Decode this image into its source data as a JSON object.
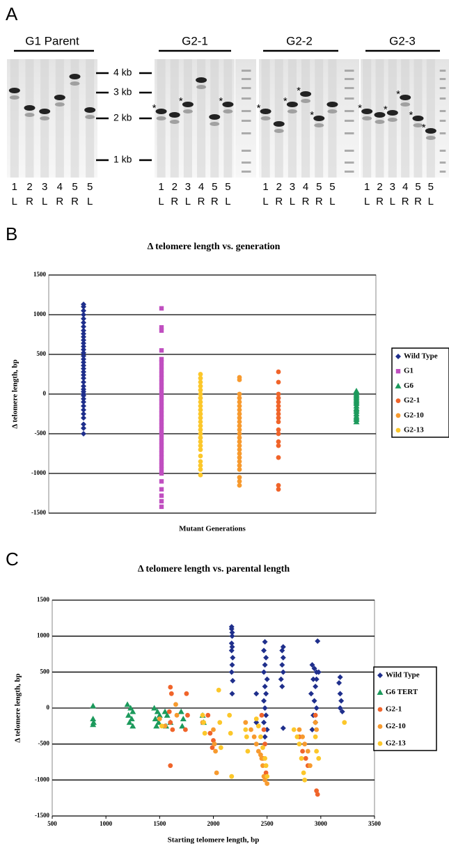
{
  "panel_a": {
    "letter": "A",
    "marker_symbol": "*",
    "size_markers": [
      "4 kb",
      "3 kb",
      "2 kb",
      "1 kb"
    ],
    "groups": [
      {
        "label": "G1 Parent",
        "lanes": [
          [
            "1",
            "L"
          ],
          [
            "2",
            "R"
          ],
          [
            "3",
            "L"
          ],
          [
            "4",
            "R"
          ],
          [
            "5",
            "R"
          ],
          [
            "5",
            "L"
          ]
        ]
      },
      {
        "label": "G2-1",
        "lanes": [
          [
            "1",
            "L"
          ],
          [
            "2",
            "R"
          ],
          [
            "3",
            "L"
          ],
          [
            "4",
            "R"
          ],
          [
            "5",
            "R"
          ],
          [
            "5",
            "L"
          ]
        ]
      },
      {
        "label": "G2-2",
        "lanes": [
          [
            "1",
            "L"
          ],
          [
            "2",
            "R"
          ],
          [
            "3",
            "L"
          ],
          [
            "4",
            "R"
          ],
          [
            "5",
            "R"
          ],
          [
            "5",
            "L"
          ]
        ]
      },
      {
        "label": "G2-3",
        "lanes": [
          [
            "1",
            "L"
          ],
          [
            "2",
            "R"
          ],
          [
            "3",
            "L"
          ],
          [
            "4",
            "R"
          ],
          [
            "5",
            "R"
          ],
          [
            "5",
            "L"
          ]
        ]
      }
    ]
  },
  "chart_data": [
    {
      "type": "strip",
      "letter": "B",
      "title": "Δ telomere length vs. generation",
      "y_label": "Δ telomere length, bp",
      "x_label": "Mutant Generations",
      "categories": [
        null,
        null,
        null,
        null,
        null,
        null,
        null,
        null
      ],
      "ylim": [
        -1500,
        1500
      ],
      "yticks": [
        -1500,
        -1000,
        -500,
        0,
        500,
        1000,
        1500
      ],
      "grid": true,
      "legend": "right",
      "series": [
        {
          "name": "Wild Type",
          "color": "#1f2f8c",
          "marker": "diamond",
          "category": 0,
          "values": [
            -500,
            -430,
            -380,
            -300,
            -250,
            -200,
            -150,
            -100,
            -60,
            -20,
            0,
            30,
            60,
            100,
            150,
            200,
            240,
            280,
            320,
            360,
            400,
            440,
            480,
            520,
            560,
            600,
            640,
            680,
            720,
            760,
            800,
            850,
            900,
            950,
            1000,
            1050,
            1100,
            1130
          ]
        },
        {
          "name": "G1",
          "color": "#c04fc0",
          "marker": "square",
          "category": 2,
          "values": [
            -1420,
            -1350,
            -1280,
            -1200,
            -1100,
            -1000,
            -950,
            -900,
            -850,
            -800,
            -750,
            -700,
            -650,
            -600,
            -550,
            -500,
            -450,
            -400,
            -350,
            -300,
            -250,
            -200,
            -150,
            -100,
            -50,
            0,
            50,
            100,
            150,
            200,
            250,
            300,
            350,
            400,
            440,
            550,
            800,
            840,
            1080
          ]
        },
        {
          "name": "G6",
          "color": "#1c9a5c",
          "marker": "triangle",
          "category": 7,
          "values": [
            -350,
            -320,
            -300,
            -280,
            -250,
            -220,
            -200,
            -180,
            -150,
            -120,
            -100,
            -80,
            -60,
            -40,
            -20,
            0,
            20,
            40
          ]
        },
        {
          "name": "G2-1",
          "color": "#f0642a",
          "marker": "circle",
          "category": 5,
          "values": [
            -1200,
            -1150,
            -800,
            -650,
            -600,
            -500,
            -450,
            -350,
            -300,
            -250,
            -200,
            -150,
            -100,
            -50,
            0,
            150,
            280
          ]
        },
        {
          "name": "G2-10",
          "color": "#f79a2e",
          "marker": "circle",
          "category": 4,
          "values": [
            -1150,
            -1100,
            -1050,
            -950,
            -900,
            -850,
            -800,
            -750,
            -700,
            -650,
            -600,
            -550,
            -500,
            -450,
            -400,
            -350,
            -300,
            -250,
            -200,
            -150,
            -100,
            -50,
            0,
            180,
            210
          ]
        },
        {
          "name": "G2-13",
          "color": "#fcc72a",
          "marker": "circle",
          "category": 3,
          "values": [
            -1020,
            -950,
            -900,
            -850,
            -780,
            -700,
            -650,
            -600,
            -550,
            -500,
            -450,
            -400,
            -350,
            -300,
            -250,
            -200,
            -150,
            -100,
            -50,
            0,
            50,
            100,
            150,
            200,
            250
          ]
        }
      ]
    },
    {
      "type": "scatter",
      "letter": "C",
      "title": "Δ telomere length vs. parental length",
      "y_label": "Δ telomere length, bp",
      "x_label": "Starting telomere length, bp",
      "xlim": [
        500,
        3500
      ],
      "xticks": [
        500,
        1000,
        1500,
        2000,
        2500,
        3000,
        3500
      ],
      "ylim": [
        -1500,
        1500
      ],
      "yticks": [
        -1500,
        -1000,
        -500,
        0,
        500,
        1000,
        1500
      ],
      "grid": true,
      "legend": "right",
      "series": [
        {
          "name": "Wild Type",
          "color": "#1f2f8c",
          "marker": "diamond",
          "x": [
            2170,
            2170,
            2175,
            2175,
            2170,
            2175,
            2170,
            2180,
            2175,
            2170,
            2180,
            2175,
            2400,
            2400,
            2480,
            2470,
            2490,
            2480,
            2470,
            2500,
            2480,
            2490,
            2470,
            2480,
            2490,
            2470,
            2500,
            2480,
            2650,
            2640,
            2650,
            2640,
            2650,
            2630,
            2640,
            2650,
            2920,
            2940,
            2960,
            2930,
            2950,
            2910,
            2940,
            2960,
            2930,
            2950,
            2920,
            2970,
            2980,
            2960,
            3180,
            3170,
            3180,
            3190,
            3180,
            3200
          ],
          "values": [
            1130,
            1100,
            1050,
            1000,
            900,
            850,
            800,
            700,
            600,
            500,
            380,
            200,
            200,
            -200,
            920,
            800,
            700,
            600,
            500,
            400,
            300,
            200,
            100,
            0,
            -100,
            -200,
            -300,
            -400,
            850,
            800,
            700,
            600,
            500,
            400,
            300,
            -280,
            600,
            550,
            500,
            400,
            300,
            200,
            100,
            0,
            -100,
            -200,
            -300,
            930,
            500,
            400,
            430,
            350,
            200,
            100,
            0,
            -50
          ]
        },
        {
          "name": "G6 TERT",
          "color": "#1c9a5c",
          "marker": "triangle",
          "x": [
            880,
            880,
            885,
            880,
            1200,
            1230,
            1250,
            1210,
            1240,
            1220,
            1250,
            1450,
            1480,
            1500,
            1460,
            1490,
            1470,
            1550,
            1570,
            1600,
            1560,
            1700,
            1720,
            1710,
            1900,
            1910
          ],
          "values": [
            30,
            -150,
            -200,
            -230,
            50,
            0,
            -50,
            -100,
            -150,
            -200,
            -250,
            0,
            -50,
            -100,
            -150,
            -200,
            -250,
            -50,
            -100,
            -200,
            -250,
            -50,
            -150,
            -250,
            -100,
            -200
          ]
        },
        {
          "name": "G2-1",
          "color": "#f0642a",
          "marker": "circle",
          "x": [
            1600,
            1610,
            1590,
            1600,
            1620,
            1600,
            1750,
            1760,
            1740,
            1950,
            1970,
            2000,
            1990,
            2450,
            2470,
            2480,
            2460,
            2490,
            2800,
            2830,
            2860,
            2880,
            2950,
            2960,
            2970
          ],
          "values": [
            290,
            200,
            -50,
            -200,
            -300,
            -800,
            200,
            -100,
            -300,
            -100,
            -350,
            -450,
            -550,
            -100,
            -300,
            -500,
            -700,
            -900,
            -400,
            -600,
            -700,
            -800,
            -100,
            -1150,
            -1200
          ]
        },
        {
          "name": "G2-10",
          "color": "#f79a2e",
          "marker": "circle",
          "x": [
            1500,
            1550,
            1650,
            1660,
            1900,
            2000,
            2010,
            2020,
            2030,
            2300,
            2350,
            2380,
            2400,
            2420,
            2440,
            2450,
            2460,
            2470,
            2480,
            2500,
            2800,
            2830,
            2850,
            2880,
            2900,
            2950,
            2960
          ],
          "values": [
            -150,
            -250,
            50,
            -100,
            -200,
            -300,
            -500,
            -600,
            -900,
            -200,
            -300,
            -400,
            -500,
            -600,
            -650,
            -700,
            -800,
            -950,
            -1000,
            -1050,
            -300,
            -400,
            -500,
            -600,
            -800,
            -200,
            -300
          ]
        },
        {
          "name": "G2-13",
          "color": "#fcc72a",
          "marker": "circle",
          "x": [
            1520,
            1900,
            1910,
            1920,
            2050,
            2060,
            2070,
            2150,
            2160,
            2170,
            2300,
            2310,
            2320,
            2400,
            2420,
            2440,
            2460,
            2480,
            2490,
            2500,
            2750,
            2780,
            2800,
            2820,
            2840,
            2850,
            2950,
            2960,
            2980,
            3220
          ],
          "values": [
            -250,
            -100,
            -200,
            -350,
            250,
            -200,
            -550,
            -100,
            -350,
            -950,
            -300,
            -400,
            -600,
            -150,
            -250,
            -400,
            -550,
            -700,
            -800,
            -950,
            -300,
            -400,
            -500,
            -700,
            -900,
            -1000,
            -400,
            -600,
            -700,
            -200
          ]
        }
      ]
    }
  ]
}
